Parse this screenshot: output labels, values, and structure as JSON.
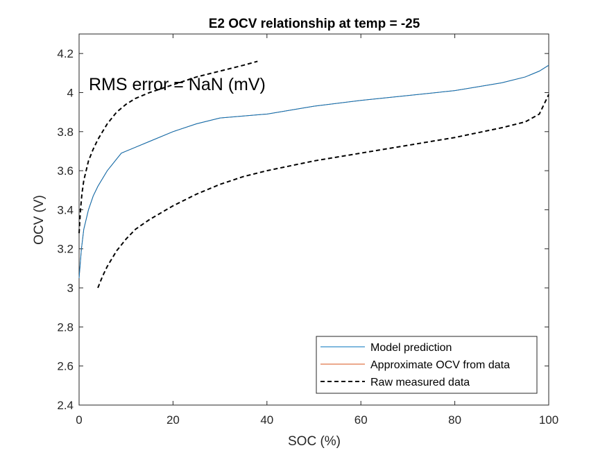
{
  "chart_data": {
    "type": "line",
    "title": "E2 OCV relationship at temp = -25",
    "xlabel": "SOC (%)",
    "ylabel": "OCV (V)",
    "xlim": [
      0,
      100
    ],
    "ylim": [
      2.4,
      4.3
    ],
    "xticks": [
      0,
      20,
      40,
      60,
      80,
      100
    ],
    "xtick_labels": [
      "0",
      "20",
      "40",
      "60",
      "80",
      "100"
    ],
    "yticks": [
      2.4,
      2.6,
      2.8,
      3.0,
      3.2,
      3.4,
      3.6,
      3.8,
      4.0,
      4.2
    ],
    "ytick_labels": [
      "2.4",
      "2.6",
      "2.8",
      "3",
      "3.2",
      "3.4",
      "3.6",
      "3.8",
      "4",
      "4.2"
    ],
    "grid": false,
    "legend_position": "bottom-right",
    "annotation": "RMS error = NaN (mV)",
    "colors": {
      "model": "#0072BD",
      "approx": "#D95319",
      "raw": "#000000"
    },
    "series": [
      {
        "name": "Model prediction",
        "style": "solid",
        "x": [
          0,
          0.5,
          1,
          2,
          3,
          4,
          5,
          6,
          7,
          8,
          9,
          10,
          12,
          15,
          20,
          25,
          30,
          35,
          40,
          50,
          60,
          70,
          80,
          90,
          95,
          98,
          100
        ],
        "y": [
          3.05,
          3.2,
          3.3,
          3.4,
          3.47,
          3.52,
          3.56,
          3.6,
          3.63,
          3.66,
          3.69,
          3.7,
          3.72,
          3.75,
          3.8,
          3.84,
          3.87,
          3.88,
          3.89,
          3.93,
          3.96,
          3.985,
          4.01,
          4.05,
          4.08,
          4.11,
          4.14
        ]
      },
      {
        "name": "Approximate OCV from data",
        "style": "solid",
        "x": [
          0,
          0.5,
          1,
          2,
          3,
          4,
          5,
          6,
          7,
          8,
          9,
          10,
          12,
          15,
          20,
          25,
          30,
          35,
          40,
          50,
          60,
          70,
          80,
          90,
          95,
          98,
          100
        ],
        "y": [
          3.05,
          3.2,
          3.3,
          3.4,
          3.47,
          3.52,
          3.56,
          3.6,
          3.63,
          3.66,
          3.69,
          3.7,
          3.72,
          3.75,
          3.8,
          3.84,
          3.87,
          3.88,
          3.89,
          3.93,
          3.96,
          3.985,
          4.01,
          4.05,
          4.08,
          4.11,
          4.14
        ]
      },
      {
        "name": "Raw measured data",
        "style": "dashed",
        "segments": [
          {
            "x": [
              0,
              0.3,
              0.6,
              1,
              1.5,
              2,
              3,
              4,
              5,
              6,
              8,
              10,
              12,
              15,
              20,
              25,
              30,
              35,
              38
            ],
            "y": [
              3.28,
              3.4,
              3.48,
              3.55,
              3.6,
              3.65,
              3.71,
              3.76,
              3.8,
              3.84,
              3.9,
              3.94,
              3.97,
              4.0,
              4.04,
              4.08,
              4.11,
              4.14,
              4.16
            ]
          },
          {
            "x": [
              4,
              5,
              6,
              8,
              10,
              12,
              15,
              20,
              25,
              30,
              35,
              40,
              50,
              60,
              70,
              80,
              90,
              95,
              98,
              100
            ],
            "y": [
              3.0,
              3.06,
              3.11,
              3.19,
              3.25,
              3.3,
              3.35,
              3.42,
              3.48,
              3.53,
              3.57,
              3.6,
              3.65,
              3.69,
              3.73,
              3.77,
              3.82,
              3.85,
              3.89,
              3.99
            ]
          }
        ]
      }
    ]
  }
}
